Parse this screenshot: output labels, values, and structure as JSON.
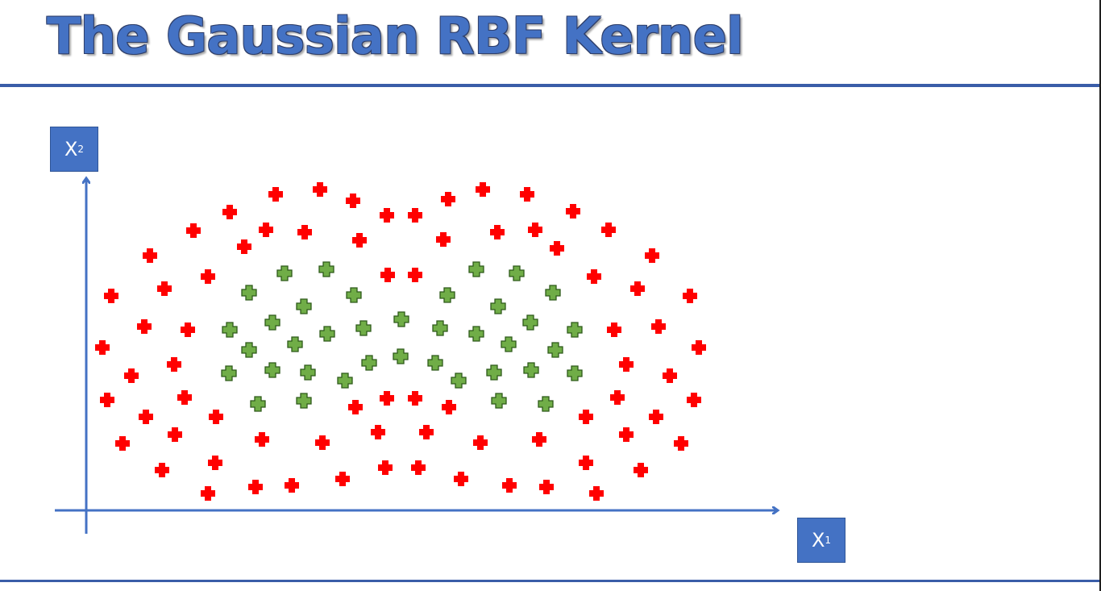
{
  "slide": {
    "title": "The Gaussian RBF Kernel"
  },
  "axes": {
    "x_label": "X",
    "x_sub": "1",
    "y_label": "X",
    "y_sub": "2"
  },
  "colors": {
    "outer": "#ff0000",
    "inner": "#70ad47",
    "axis": "#4472C4"
  },
  "points": {
    "red": [
      [
        342,
        241
      ],
      [
        397,
        235
      ],
      [
        438,
        249
      ],
      [
        480,
        267
      ],
      [
        515,
        267
      ],
      [
        556,
        247
      ],
      [
        599,
        235
      ],
      [
        654,
        241
      ],
      [
        711,
        262
      ],
      [
        285,
        263
      ],
      [
        240,
        286
      ],
      [
        330,
        285
      ],
      [
        378,
        288
      ],
      [
        446,
        298
      ],
      [
        550,
        297
      ],
      [
        617,
        288
      ],
      [
        664,
        285
      ],
      [
        755,
        285
      ],
      [
        691,
        308
      ],
      [
        186,
        317
      ],
      [
        303,
        306
      ],
      [
        809,
        317
      ],
      [
        138,
        367
      ],
      [
        204,
        358
      ],
      [
        258,
        343
      ],
      [
        481,
        341
      ],
      [
        515,
        341
      ],
      [
        737,
        343
      ],
      [
        791,
        358
      ],
      [
        856,
        367
      ],
      [
        179,
        405
      ],
      [
        233,
        409
      ],
      [
        762,
        409
      ],
      [
        817,
        405
      ],
      [
        127,
        431
      ],
      [
        867,
        431
      ],
      [
        163,
        466
      ],
      [
        216,
        452
      ],
      [
        777,
        452
      ],
      [
        831,
        466
      ],
      [
        133,
        496
      ],
      [
        229,
        493
      ],
      [
        441,
        505
      ],
      [
        480,
        494
      ],
      [
        515,
        494
      ],
      [
        557,
        505
      ],
      [
        766,
        493
      ],
      [
        861,
        496
      ],
      [
        181,
        517
      ],
      [
        268,
        517
      ],
      [
        727,
        517
      ],
      [
        814,
        517
      ],
      [
        152,
        550
      ],
      [
        217,
        539
      ],
      [
        325,
        545
      ],
      [
        400,
        549
      ],
      [
        469,
        536
      ],
      [
        529,
        536
      ],
      [
        596,
        549
      ],
      [
        669,
        545
      ],
      [
        777,
        539
      ],
      [
        845,
        550
      ],
      [
        201,
        583
      ],
      [
        267,
        574
      ],
      [
        727,
        574
      ],
      [
        795,
        583
      ],
      [
        258,
        612
      ],
      [
        317,
        604
      ],
      [
        362,
        602
      ],
      [
        425,
        594
      ],
      [
        478,
        580
      ],
      [
        519,
        580
      ],
      [
        572,
        594
      ],
      [
        632,
        602
      ],
      [
        678,
        604
      ],
      [
        740,
        612
      ]
    ],
    "green": [
      [
        353,
        339
      ],
      [
        405,
        334
      ],
      [
        591,
        334
      ],
      [
        641,
        339
      ],
      [
        309,
        363
      ],
      [
        377,
        380
      ],
      [
        439,
        366
      ],
      [
        555,
        366
      ],
      [
        618,
        380
      ],
      [
        686,
        363
      ],
      [
        285,
        409
      ],
      [
        338,
        400
      ],
      [
        406,
        414
      ],
      [
        451,
        407
      ],
      [
        498,
        396
      ],
      [
        546,
        407
      ],
      [
        591,
        414
      ],
      [
        658,
        400
      ],
      [
        713,
        409
      ],
      [
        309,
        434
      ],
      [
        366,
        427
      ],
      [
        631,
        427
      ],
      [
        689,
        434
      ],
      [
        284,
        463
      ],
      [
        338,
        459
      ],
      [
        382,
        462
      ],
      [
        428,
        472
      ],
      [
        458,
        450
      ],
      [
        497,
        442
      ],
      [
        540,
        450
      ],
      [
        569,
        472
      ],
      [
        613,
        462
      ],
      [
        659,
        459
      ],
      [
        713,
        463
      ],
      [
        320,
        501
      ],
      [
        377,
        497
      ],
      [
        619,
        497
      ],
      [
        677,
        501
      ]
    ]
  }
}
